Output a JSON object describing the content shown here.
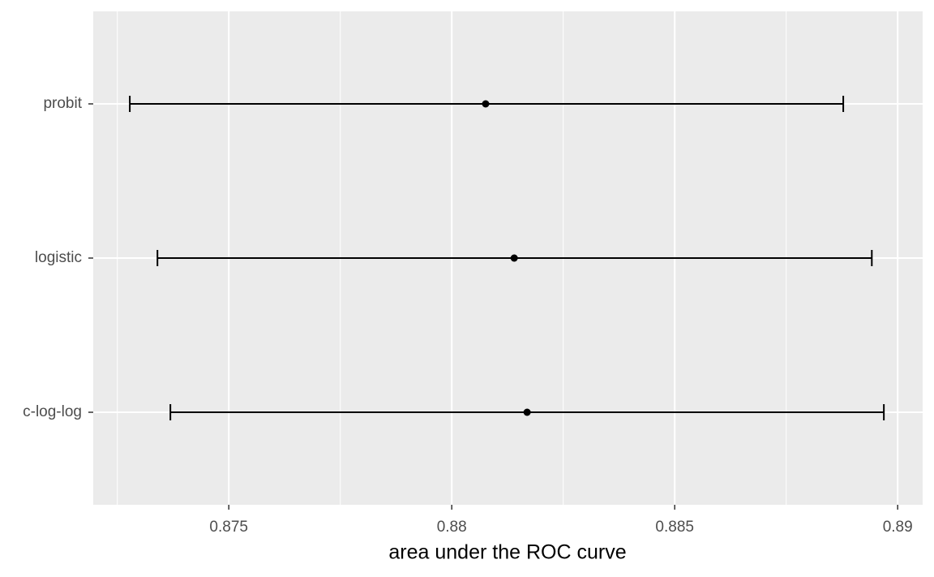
{
  "chart_data": {
    "type": "errorbar",
    "x_label": "area under the ROC curve",
    "categories": [
      "probit",
      "logistic",
      "c-log-log"
    ],
    "values": [
      0.88076,
      0.8814,
      0.88169
    ],
    "lower": [
      0.87278,
      0.8734,
      0.87369
    ],
    "upper": [
      0.88878,
      0.88942,
      0.88969
    ],
    "color": "#000000",
    "xlim": [
      0.87196,
      0.89056
    ],
    "xticks": [
      0.875,
      0.88,
      0.885,
      0.89
    ],
    "x_minor_grid": [
      0.8725,
      0.8775,
      0.8825,
      0.8875
    ],
    "grid": true
  }
}
